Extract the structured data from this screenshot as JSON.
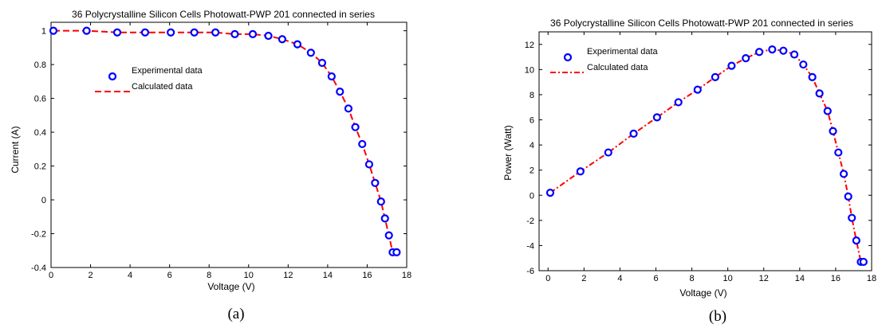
{
  "colors": {
    "experimental": "#0000ff",
    "calculated": "#ff0000",
    "axes": "#000000"
  },
  "chart_data": [
    {
      "type": "scatter",
      "title": "36 Polycrystalline Silicon Cells Photowatt-PWP 201 connected in series",
      "xlabel": "Voltage (V)",
      "ylabel": "Current (A)",
      "panel_label": "(a)",
      "xlim": [
        0,
        18
      ],
      "ylim": [
        -0.4,
        1.05
      ],
      "xticks": [
        "0",
        "2",
        "4",
        "6",
        "8",
        "10",
        "12",
        "14",
        "16",
        "18"
      ],
      "yticks": [
        "-0.4",
        "-0.2",
        "0",
        "0.2",
        "0.4",
        "0.6",
        "0.8",
        "1"
      ],
      "legend": {
        "placement": "upper-left",
        "entries": [
          "Experimental data",
          "Calculated data"
        ]
      },
      "series": [
        {
          "name": "Experimental data",
          "marker": "circle",
          "x": [
            0.12,
            1.8,
            3.35,
            4.76,
            6.06,
            7.25,
            8.32,
            9.3,
            10.21,
            11.0,
            11.7,
            12.47,
            13.15,
            13.72,
            14.2,
            14.62,
            15.05,
            15.4,
            15.75,
            16.1,
            16.4,
            16.7,
            16.9,
            17.1,
            17.29,
            17.49
          ],
          "y": [
            1.0,
            1.0,
            0.99,
            0.99,
            0.99,
            0.99,
            0.99,
            0.98,
            0.98,
            0.97,
            0.95,
            0.92,
            0.87,
            0.81,
            0.73,
            0.64,
            0.54,
            0.43,
            0.33,
            0.21,
            0.1,
            -0.01,
            -0.11,
            -0.21,
            -0.31,
            -0.31
          ]
        },
        {
          "name": "Calculated data",
          "line": "dashed",
          "x": [
            0.12,
            1.8,
            3.35,
            4.76,
            6.06,
            7.25,
            8.32,
            9.3,
            10.21,
            11.0,
            11.7,
            12.47,
            13.15,
            13.72,
            14.2,
            14.62,
            15.05,
            15.4,
            15.75,
            16.1,
            16.4,
            16.7,
            16.9,
            17.1,
            17.29,
            17.49
          ],
          "y": [
            1.0,
            1.0,
            0.99,
            0.99,
            0.99,
            0.99,
            0.99,
            0.98,
            0.98,
            0.97,
            0.95,
            0.92,
            0.87,
            0.81,
            0.73,
            0.64,
            0.54,
            0.43,
            0.33,
            0.21,
            0.1,
            -0.01,
            -0.11,
            -0.21,
            -0.31,
            -0.31
          ]
        }
      ]
    },
    {
      "type": "scatter",
      "title": "36 Polycrystalline Silicon Cells Photowatt-PWP 201 connected in series",
      "xlabel": "Voltage (V)",
      "ylabel": "Power (Watt)",
      "panel_label": "(b)",
      "xlim": [
        -0.5,
        18
      ],
      "ylim": [
        -6,
        13
      ],
      "xticks": [
        "0",
        "2",
        "4",
        "6",
        "8",
        "10",
        "12",
        "14",
        "16",
        "18"
      ],
      "yticks": [
        "-6",
        "-4",
        "-2",
        "0",
        "2",
        "4",
        "6",
        "8",
        "10",
        "12"
      ],
      "legend": {
        "placement": "upper-left",
        "entries": [
          "Experimental data",
          "Calculated data"
        ]
      },
      "series": [
        {
          "name": "Experimental data",
          "marker": "circle",
          "x": [
            0.12,
            1.8,
            3.35,
            4.76,
            6.06,
            7.25,
            8.32,
            9.3,
            10.21,
            11.0,
            11.75,
            12.47,
            13.09,
            13.7,
            14.2,
            14.7,
            15.1,
            15.55,
            15.85,
            16.15,
            16.45,
            16.7,
            16.9,
            17.15,
            17.4,
            17.55
          ],
          "y": [
            0.2,
            1.9,
            3.4,
            4.9,
            6.2,
            7.4,
            8.4,
            9.4,
            10.3,
            10.9,
            11.4,
            11.6,
            11.5,
            11.2,
            10.4,
            9.4,
            8.1,
            6.7,
            5.1,
            3.4,
            1.7,
            -0.1,
            -1.8,
            -3.6,
            -5.3,
            -5.3
          ]
        },
        {
          "name": "Calculated data",
          "line": "dash-dot",
          "x": [
            0.12,
            1.8,
            3.35,
            4.76,
            6.06,
            7.25,
            8.32,
            9.3,
            10.21,
            11.0,
            11.75,
            12.47,
            13.09,
            13.7,
            14.2,
            14.7,
            15.1,
            15.55,
            15.85,
            16.15,
            16.45,
            16.7,
            16.9,
            17.15,
            17.4,
            17.55
          ],
          "y": [
            0.2,
            1.9,
            3.4,
            4.9,
            6.2,
            7.4,
            8.4,
            9.4,
            10.3,
            10.9,
            11.4,
            11.6,
            11.5,
            11.2,
            10.4,
            9.4,
            8.1,
            6.7,
            5.1,
            3.4,
            1.7,
            -0.1,
            -1.8,
            -3.6,
            -5.3,
            -5.3
          ]
        }
      ]
    }
  ]
}
